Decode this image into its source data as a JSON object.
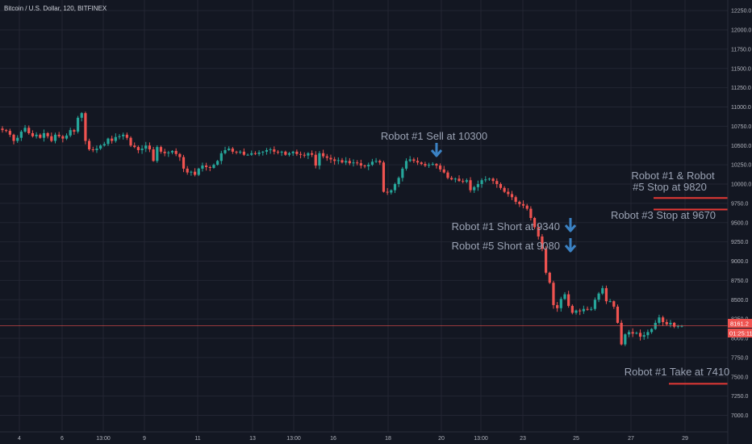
{
  "chart_data": {
    "type": "candlestick",
    "title": "Bitcoin / U.S. Dollar, 120, BITFINEX",
    "x_tick_labels": [
      "4",
      "6",
      "13:00",
      "9",
      "11",
      "13",
      "13:00",
      "16",
      "18",
      "20",
      "13:00",
      "23",
      "25",
      "27",
      "29"
    ],
    "y_tick_labels": [
      "7000.0",
      "7250.0",
      "7500.0",
      "7750.0",
      "8000.0",
      "8250.0",
      "8500.0",
      "8750.0",
      "9000.0",
      "9250.0",
      "9500.0",
      "9750.0",
      "10000.0",
      "10250.0",
      "10500.0",
      "10750.0",
      "11000.0",
      "11250.0",
      "11500.0",
      "11750.0",
      "12000.0",
      "12250.0"
    ],
    "ylim": [
      6900,
      12300
    ],
    "grid": true,
    "last_price": "8161.2",
    "countdown": "01:25:11",
    "price_line": 8161.2,
    "colors": {
      "up": "#26a69a",
      "down": "#ef5350",
      "background": "#131722",
      "grid": "#232633",
      "text": "#b2b5be",
      "annotation": "#9ba3b4",
      "arrow": "#3b82c4",
      "level_line": "#e53935"
    },
    "close_series": [
      10700,
      10690,
      10640,
      10560,
      10600,
      10680,
      10730,
      10660,
      10620,
      10640,
      10600,
      10660,
      10620,
      10560,
      10640,
      10620,
      10590,
      10630,
      10700,
      10680,
      10860,
      10920,
      10560,
      10450,
      10440,
      10460,
      10500,
      10520,
      10590,
      10560,
      10610,
      10620,
      10640,
      10600,
      10500,
      10480,
      10440,
      10460,
      10500,
      10450,
      10300,
      10480,
      10420,
      10400,
      10410,
      10430,
      10390,
      10350,
      10200,
      10150,
      10160,
      10120,
      10200,
      10240,
      10220,
      10210,
      10250,
      10300,
      10400,
      10440,
      10460,
      10420,
      10410,
      10420,
      10380,
      10380,
      10400,
      10390,
      10410,
      10420,
      10440,
      10450,
      10420,
      10410,
      10420,
      10380,
      10400,
      10420,
      10390,
      10380,
      10370,
      10400,
      10380,
      10240,
      10400,
      10360,
      10340,
      10320,
      10300,
      10310,
      10280,
      10300,
      10270,
      10280,
      10270,
      10240,
      10230,
      10250,
      10290,
      10300,
      10280,
      9900,
      9890,
      9920,
      10000,
      10080,
      10200,
      10300,
      10320,
      10300,
      10280,
      10260,
      10240,
      10250,
      10260,
      10240,
      10190,
      10150,
      10080,
      10060,
      10070,
      10040,
      10030,
      10050,
      9920,
      9960,
      10000,
      10050,
      10060,
      10070,
      10040,
      10000,
      9950,
      9900,
      9870,
      9830,
      9770,
      9740,
      9720,
      9680,
      9560,
      9440,
      9320,
      9160,
      8850,
      8720,
      8430,
      8390,
      8510,
      8570,
      8420,
      8330,
      8360,
      8350,
      8380,
      8370,
      8380,
      8500,
      8580,
      8650,
      8480,
      8480,
      8410,
      8200,
      7920,
      8050,
      8080,
      8060,
      8070,
      8020,
      8040,
      8080,
      8120,
      8200,
      8270,
      8210,
      8180,
      8200,
      8150,
      8160,
      8161
    ]
  },
  "annotations": {
    "sell": "Robot #1 Sell at 10300",
    "short1": "Robot #1 Short at 9340",
    "short5": "Robot #5 Short at 9080",
    "stop15_line1": "Robot #1 & Robot",
    "stop15_line2": "#5 Stop at 9820",
    "stop3": "Robot #3 Stop at 9670",
    "take": "Robot #1 Take at 7410"
  },
  "icons": {
    "arrow": "arrow-down-icon"
  }
}
